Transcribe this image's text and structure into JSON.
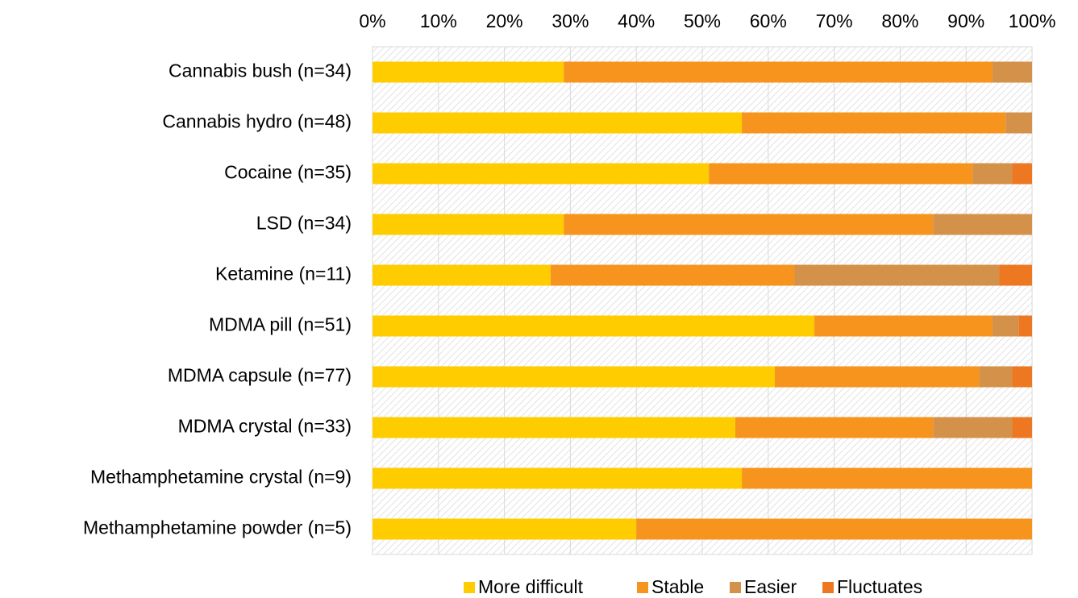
{
  "chart_data": {
    "type": "stacked_bar_horizontal",
    "categories": [
      "Cannabis bush (n=34)",
      "Cannabis hydro (n=48)",
      "Cocaine (n=35)",
      "LSD (n=34)",
      "Ketamine (n=11)",
      "MDMA pill (n=51)",
      "MDMA capsule (n=77)",
      "MDMA crystal (n=33)",
      "Methamphetamine crystal (n=9)",
      "Methamphetamine powder (n=5)"
    ],
    "series": [
      {
        "name": "More difficult",
        "color": "#ffcc00",
        "values": [
          29,
          56,
          51,
          29,
          27,
          67,
          61,
          55,
          56,
          40
        ]
      },
      {
        "name": "Stable",
        "color": "#f7941d",
        "values": [
          65,
          40,
          40,
          56,
          37,
          27,
          31,
          30,
          44,
          60
        ]
      },
      {
        "name": "Easier",
        "color": "#d4914a",
        "values": [
          6,
          4,
          6,
          15,
          31,
          4,
          5,
          12,
          0,
          0
        ]
      },
      {
        "name": "Fluctuates",
        "color": "#ee7722",
        "values": [
          0,
          0,
          3,
          0,
          5,
          2,
          3,
          3,
          0,
          0
        ]
      }
    ],
    "xlim": [
      0,
      100
    ],
    "xticks": [
      {
        "value": 0,
        "label": "0%"
      },
      {
        "value": 10,
        "label": "10%"
      },
      {
        "value": 20,
        "label": "20%"
      },
      {
        "value": 30,
        "label": "30%"
      },
      {
        "value": 40,
        "label": "40%"
      },
      {
        "value": 50,
        "label": "50%"
      },
      {
        "value": 60,
        "label": "60%"
      },
      {
        "value": 70,
        "label": "70%"
      },
      {
        "value": 80,
        "label": "80%"
      },
      {
        "value": 90,
        "label": "90%"
      },
      {
        "value": 100,
        "label": "100%"
      }
    ],
    "grid": true,
    "legend": "bottom"
  }
}
